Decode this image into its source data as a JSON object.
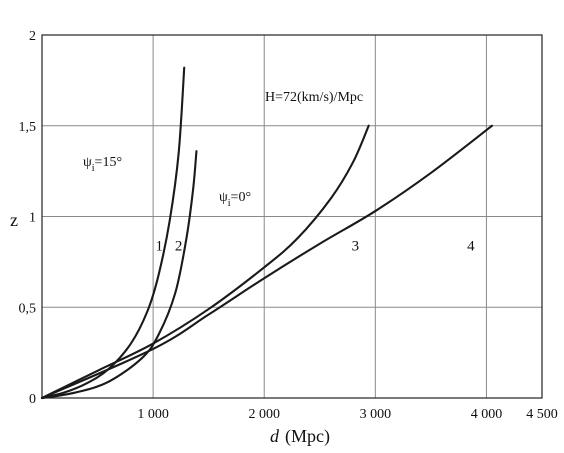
{
  "chart_data": {
    "type": "line",
    "xlabel_italic": "d",
    "xlabel_unit": "(Mpc)",
    "ylabel": "z",
    "xlim": [
      0,
      4500
    ],
    "ylim": [
      0,
      2
    ],
    "x_ticks": [
      {
        "value": 1000,
        "label": "1 000"
      },
      {
        "value": 2000,
        "label": "2 000"
      },
      {
        "value": 3000,
        "label": "3 000"
      },
      {
        "value": 4000,
        "label": "4 000"
      },
      {
        "value": 4500,
        "label": "4 500"
      }
    ],
    "y_ticks": [
      {
        "value": 0,
        "label": "0"
      },
      {
        "value": 0.5,
        "label": "0,5"
      },
      {
        "value": 1,
        "label": "1"
      },
      {
        "value": 1.5,
        "label": "1,5"
      },
      {
        "value": 2,
        "label": "2"
      }
    ],
    "grid": true,
    "annotations": {
      "hubble": "H=72(km/s)/Mpc",
      "psi15_base": "ψ",
      "psi15_sub": "i",
      "psi15_rest": "=15°",
      "psi0_base": "ψ",
      "psi0_sub": "i",
      "psi0_rest": "=0°"
    },
    "series": [
      {
        "name": "1",
        "points": [
          [
            0,
            0
          ],
          [
            200,
            0.03
          ],
          [
            400,
            0.08
          ],
          [
            600,
            0.16
          ],
          [
            800,
            0.3
          ],
          [
            950,
            0.48
          ],
          [
            1050,
            0.68
          ],
          [
            1150,
            0.98
          ],
          [
            1230,
            1.35
          ],
          [
            1280,
            1.82
          ]
        ]
      },
      {
        "name": "2",
        "points": [
          [
            0,
            0
          ],
          [
            300,
            0.03
          ],
          [
            600,
            0.09
          ],
          [
            900,
            0.22
          ],
          [
            1050,
            0.35
          ],
          [
            1200,
            0.58
          ],
          [
            1300,
            0.88
          ],
          [
            1360,
            1.15
          ],
          [
            1390,
            1.36
          ]
        ]
      },
      {
        "name": "3",
        "points": [
          [
            0,
            0
          ],
          [
            500,
            0.15
          ],
          [
            1000,
            0.3
          ],
          [
            1500,
            0.49
          ],
          [
            2000,
            0.72
          ],
          [
            2300,
            0.88
          ],
          [
            2600,
            1.1
          ],
          [
            2800,
            1.3
          ],
          [
            2940,
            1.5
          ]
        ]
      },
      {
        "name": "4",
        "points": [
          [
            0,
            0
          ],
          [
            1000,
            0.27
          ],
          [
            1500,
            0.46
          ],
          [
            2000,
            0.66
          ],
          [
            2500,
            0.85
          ],
          [
            3000,
            1.03
          ],
          [
            3500,
            1.24
          ],
          [
            4050,
            1.5
          ]
        ]
      }
    ]
  }
}
